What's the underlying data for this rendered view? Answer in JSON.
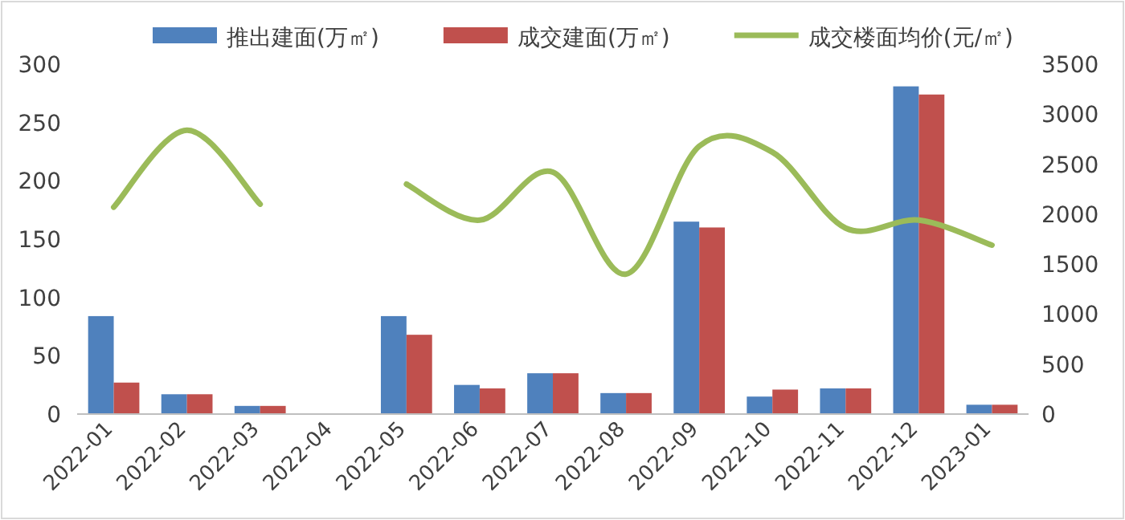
{
  "chart_data": {
    "type": "bar",
    "categories": [
      "2022-01",
      "2022-02",
      "2022-03",
      "2022-04",
      "2022-05",
      "2022-06",
      "2022-07",
      "2022-08",
      "2022-09",
      "2022-10",
      "2022-11",
      "2022-12",
      "2023-01"
    ],
    "series": [
      {
        "name": "推出建面(万㎡)",
        "color": "#4f81bd",
        "values": [
          84,
          17,
          7,
          null,
          84,
          25,
          35,
          18,
          165,
          15,
          22,
          281,
          8
        ]
      },
      {
        "name": "成交建面(万㎡)",
        "color": "#c0504d",
        "values": [
          27,
          17,
          7,
          null,
          68,
          22,
          35,
          18,
          160,
          21,
          22,
          274,
          8
        ]
      },
      {
        "name": "成交楼面均价(元/㎡)",
        "type": "line",
        "axis": "y2",
        "color": "#9bbb59",
        "values": [
          2070,
          2840,
          2100,
          null,
          2300,
          1940,
          2420,
          1400,
          2680,
          2620,
          1860,
          1940,
          1690
        ]
      }
    ],
    "ylim": [
      0,
      300
    ],
    "yticks": [
      0,
      50,
      100,
      150,
      200,
      250,
      300
    ],
    "y2lim": [
      0,
      3500
    ],
    "y2ticks": [
      0,
      500,
      1000,
      1500,
      2000,
      2500,
      3000,
      3500
    ],
    "legend": "top",
    "grid": false
  }
}
